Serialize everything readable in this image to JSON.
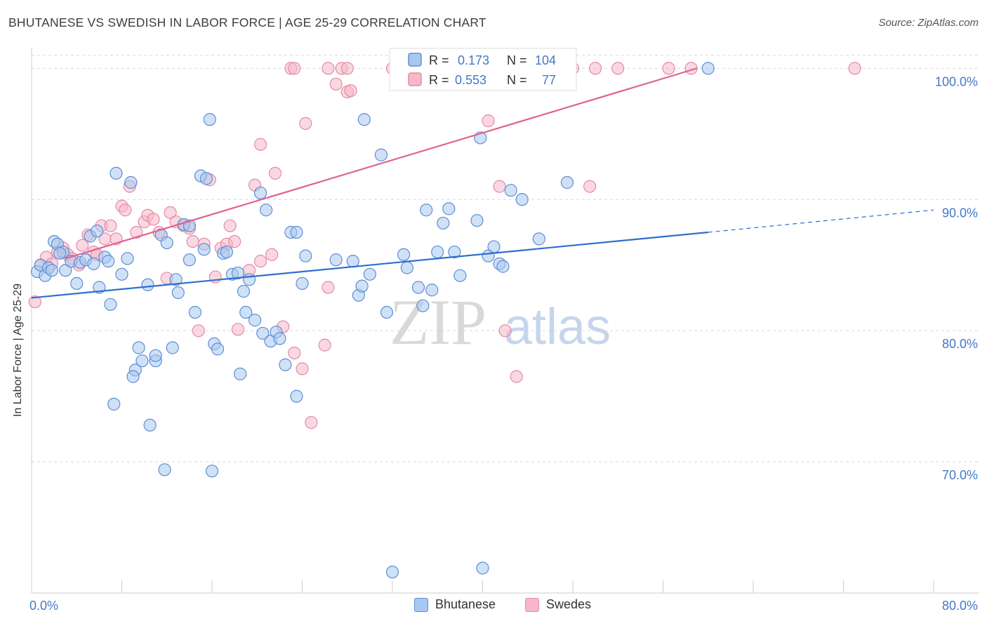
{
  "title": "BHUTANESE VS SWEDISH IN LABOR FORCE | AGE 25-29 CORRELATION CHART",
  "source": "Source: ZipAtlas.com",
  "watermark": {
    "part1": "ZIP",
    "part2": "atlas"
  },
  "colors": {
    "blue_fill": "#a9c8ef",
    "blue_stroke": "#5b8fd6",
    "blue_line": "#2f6fce",
    "pink_fill": "#f6b8c9",
    "pink_stroke": "#e58aa6",
    "pink_line": "#e0638d",
    "axis_text_blue": "#4477cc",
    "grid": "#d8d8d8"
  },
  "legend": {
    "rows": [
      {
        "r_label": "R = ",
        "r_value": "0.173",
        "n_label": "N = ",
        "n_value": "104",
        "series": "Bhutanese"
      },
      {
        "r_label": "R = ",
        "r_value": "0.553",
        "n_label": "N = ",
        "n_value": "77",
        "series": "Swedes"
      }
    ]
  },
  "chart_data": {
    "type": "scatter",
    "title": "BHUTANESE VS SWEDISH IN LABOR FORCE | AGE 25-29 CORRELATION CHART",
    "xlabel": "",
    "ylabel": "In Labor Force | Age 25-29",
    "xlim": [
      0,
      80
    ],
    "ylim": [
      60,
      102
    ],
    "x_tick_labels": [
      "0.0%",
      "80.0%"
    ],
    "y_ticks": [
      70,
      80,
      90,
      100
    ],
    "y_tick_labels": [
      "70.0%",
      "80.0%",
      "90.0%",
      "100.0%"
    ],
    "grid": true,
    "legend_position": "bottom-center",
    "series": [
      {
        "name": "Bhutanese",
        "color": "#5b8fd6",
        "trend": {
          "x0": 0,
          "y0": 82.5,
          "x1": 60,
          "y1": 87.5,
          "dashed_to_x": 80,
          "dashed_to_y": 89.2
        },
        "points": [
          [
            0.5,
            84.5
          ],
          [
            0.8,
            85.0
          ],
          [
            1.2,
            84.2
          ],
          [
            1.5,
            84.8
          ],
          [
            2.0,
            86.8
          ],
          [
            2.3,
            86.6
          ],
          [
            2.8,
            86.0
          ],
          [
            3.0,
            84.6
          ],
          [
            3.5,
            85.3
          ],
          [
            4.0,
            83.6
          ],
          [
            4.3,
            85.2
          ],
          [
            4.8,
            85.4
          ],
          [
            5.2,
            87.2
          ],
          [
            5.5,
            85.1
          ],
          [
            5.8,
            87.6
          ],
          [
            6.0,
            83.3
          ],
          [
            6.5,
            85.6
          ],
          [
            6.8,
            85.3
          ],
          [
            7.0,
            82.0
          ],
          [
            7.5,
            92.0
          ],
          [
            8.0,
            84.3
          ],
          [
            8.5,
            85.5
          ],
          [
            8.8,
            91.3
          ],
          [
            9.5,
            78.7
          ],
          [
            9.8,
            77.7
          ],
          [
            9.2,
            77.0
          ],
          [
            9.0,
            76.5
          ],
          [
            7.3,
            74.4
          ],
          [
            10.3,
            83.5
          ],
          [
            10.5,
            72.8
          ],
          [
            11.0,
            77.7
          ],
          [
            11.0,
            78.1
          ],
          [
            11.5,
            87.3
          ],
          [
            11.8,
            69.4
          ],
          [
            12.0,
            86.7
          ],
          [
            12.5,
            78.7
          ],
          [
            12.8,
            83.9
          ],
          [
            13.0,
            82.9
          ],
          [
            13.5,
            88.1
          ],
          [
            14.0,
            85.4
          ],
          [
            14.5,
            81.4
          ],
          [
            15.0,
            91.8
          ],
          [
            15.3,
            86.2
          ],
          [
            15.5,
            91.6
          ],
          [
            15.8,
            96.1
          ],
          [
            16.2,
            79.0
          ],
          [
            16.5,
            78.6
          ],
          [
            16.0,
            69.3
          ],
          [
            17.0,
            85.9
          ],
          [
            17.3,
            86.0
          ],
          [
            17.8,
            84.3
          ],
          [
            18.3,
            84.4
          ],
          [
            18.5,
            76.7
          ],
          [
            18.8,
            83.0
          ],
          [
            19.0,
            81.4
          ],
          [
            19.3,
            83.9
          ],
          [
            19.8,
            80.8
          ],
          [
            20.3,
            90.5
          ],
          [
            20.5,
            79.8
          ],
          [
            20.8,
            89.2
          ],
          [
            21.2,
            79.2
          ],
          [
            21.7,
            79.9
          ],
          [
            22.0,
            79.4
          ],
          [
            22.5,
            77.4
          ],
          [
            23.0,
            87.5
          ],
          [
            23.5,
            87.5
          ],
          [
            23.5,
            75.0
          ],
          [
            24.0,
            83.6
          ],
          [
            24.3,
            85.7
          ],
          [
            28.5,
            85.3
          ],
          [
            29.0,
            82.7
          ],
          [
            29.3,
            83.4
          ],
          [
            29.5,
            96.1
          ],
          [
            30.0,
            84.3
          ],
          [
            31.0,
            93.4
          ],
          [
            31.5,
            81.4
          ],
          [
            32.0,
            61.6
          ],
          [
            33.0,
            85.8
          ],
          [
            33.3,
            84.8
          ],
          [
            34.3,
            83.3
          ],
          [
            34.7,
            81.9
          ],
          [
            35.0,
            89.2
          ],
          [
            35.5,
            83.1
          ],
          [
            36.0,
            86.0
          ],
          [
            36.5,
            88.2
          ],
          [
            37.0,
            89.3
          ],
          [
            37.5,
            86.0
          ],
          [
            38.0,
            84.2
          ],
          [
            39.5,
            88.4
          ],
          [
            39.8,
            94.7
          ],
          [
            40.0,
            61.9
          ],
          [
            40.5,
            85.7
          ],
          [
            41.0,
            86.4
          ],
          [
            41.5,
            85.1
          ],
          [
            41.8,
            84.9
          ],
          [
            42.5,
            90.7
          ],
          [
            43.5,
            90.0
          ],
          [
            45.0,
            87.0
          ],
          [
            47.5,
            91.3
          ],
          [
            60.0,
            100.0
          ],
          [
            14.0,
            88.0
          ],
          [
            27.0,
            85.4
          ],
          [
            1.8,
            84.6
          ],
          [
            2.5,
            85.9
          ]
        ]
      },
      {
        "name": "Swedes",
        "color": "#e58aa6",
        "trend": {
          "x0": 3,
          "y0": 85.5,
          "x1": 59,
          "y1": 100.0
        },
        "points": [
          [
            0.3,
            82.2
          ],
          [
            0.8,
            85.0
          ],
          [
            1.3,
            85.6
          ],
          [
            1.8,
            85.1
          ],
          [
            2.3,
            86.0
          ],
          [
            2.8,
            86.3
          ],
          [
            3.2,
            85.8
          ],
          [
            3.6,
            85.5
          ],
          [
            4.2,
            85.0
          ],
          [
            4.5,
            86.5
          ],
          [
            5.0,
            87.3
          ],
          [
            5.5,
            86.0
          ],
          [
            5.8,
            85.8
          ],
          [
            6.2,
            88.0
          ],
          [
            6.5,
            87.0
          ],
          [
            7.0,
            88.0
          ],
          [
            7.5,
            87.0
          ],
          [
            8.0,
            89.5
          ],
          [
            8.3,
            89.2
          ],
          [
            8.7,
            91.0
          ],
          [
            9.3,
            87.5
          ],
          [
            10.0,
            88.3
          ],
          [
            10.3,
            88.8
          ],
          [
            10.8,
            88.5
          ],
          [
            11.3,
            87.5
          ],
          [
            12.0,
            84.0
          ],
          [
            12.3,
            89.0
          ],
          [
            12.8,
            88.3
          ],
          [
            13.5,
            88.0
          ],
          [
            14.0,
            87.8
          ],
          [
            14.3,
            86.8
          ],
          [
            14.8,
            80.0
          ],
          [
            15.3,
            86.6
          ],
          [
            15.8,
            91.5
          ],
          [
            16.3,
            84.1
          ],
          [
            16.8,
            86.3
          ],
          [
            17.3,
            86.6
          ],
          [
            17.6,
            88.0
          ],
          [
            18.0,
            86.8
          ],
          [
            18.3,
            80.1
          ],
          [
            19.3,
            84.6
          ],
          [
            19.8,
            91.1
          ],
          [
            20.3,
            85.3
          ],
          [
            20.3,
            94.2
          ],
          [
            21.3,
            85.8
          ],
          [
            21.6,
            92.0
          ],
          [
            22.3,
            80.3
          ],
          [
            23.3,
            78.3
          ],
          [
            24.0,
            77.1
          ],
          [
            24.3,
            95.8
          ],
          [
            24.8,
            73.0
          ],
          [
            26.0,
            78.9
          ],
          [
            26.3,
            83.3
          ],
          [
            27.0,
            98.8
          ],
          [
            28.0,
            98.2
          ],
          [
            28.3,
            98.3
          ],
          [
            23.0,
            100.0
          ],
          [
            23.3,
            100.0
          ],
          [
            26.3,
            100.0
          ],
          [
            27.5,
            100.0
          ],
          [
            28.0,
            100.0
          ],
          [
            32.0,
            100.0
          ],
          [
            35.5,
            100.0
          ],
          [
            37.0,
            100.0
          ],
          [
            39.5,
            100.0
          ],
          [
            40.5,
            96.0
          ],
          [
            41.5,
            91.0
          ],
          [
            42.0,
            80.0
          ],
          [
            43.0,
            76.5
          ],
          [
            45.0,
            100.0
          ],
          [
            48.0,
            100.0
          ],
          [
            49.5,
            91.0
          ],
          [
            50.0,
            100.0
          ],
          [
            52.0,
            100.0
          ],
          [
            56.5,
            100.0
          ],
          [
            58.5,
            100.0
          ],
          [
            73.0,
            100.0
          ]
        ]
      }
    ]
  }
}
